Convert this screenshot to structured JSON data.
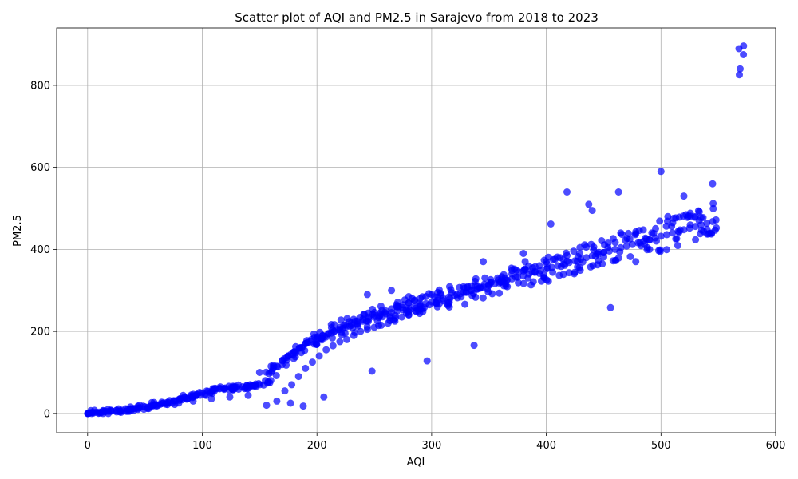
{
  "chart_data": {
    "type": "scatter",
    "title": "Scatter plot of AQI and PM2.5 in Sarajevo from 2018 to 2023",
    "xlabel": "AQI",
    "ylabel": "PM2.5",
    "xlim": [
      -27,
      600
    ],
    "ylim": [
      -47,
      940
    ],
    "x_ticks": [
      0,
      100,
      200,
      300,
      400,
      500,
      600
    ],
    "y_ticks": [
      0,
      200,
      400,
      600,
      800
    ],
    "grid": true,
    "marker_color": "#0000ff",
    "marker_alpha": 0.7,
    "trend_points_note_free": true,
    "x": [
      0,
      5,
      10,
      15,
      20,
      25,
      30,
      35,
      40,
      45,
      50,
      55,
      60,
      65,
      70,
      75,
      80,
      85,
      90,
      95,
      100,
      105,
      110,
      115,
      120,
      125,
      130,
      135,
      140,
      145,
      150,
      155,
      160,
      165,
      170,
      175,
      180,
      185,
      190,
      195,
      200,
      205,
      210,
      215,
      220,
      225,
      230,
      235,
      240,
      245,
      250,
      255,
      260,
      265,
      270,
      275,
      280,
      285,
      290,
      295,
      300,
      305,
      310,
      315,
      320,
      325,
      330,
      335,
      340,
      345,
      350,
      355,
      360,
      365,
      370,
      375,
      380,
      385,
      390,
      395,
      400,
      405,
      410,
      415,
      420,
      425,
      430,
      435,
      440,
      445,
      450,
      455,
      460,
      465,
      470,
      475,
      480,
      485,
      490,
      495,
      500,
      505,
      510,
      515,
      520,
      525,
      530,
      535,
      540,
      545,
      548,
      572,
      12,
      28,
      44,
      60,
      76,
      92,
      108,
      124,
      140,
      156,
      165,
      172,
      178,
      184,
      190,
      196,
      202,
      208,
      214,
      220,
      226,
      232,
      238,
      244,
      250,
      256,
      262,
      268,
      274,
      280,
      286,
      292,
      298,
      304,
      310,
      316,
      322,
      328,
      334,
      340,
      346,
      352,
      358,
      364,
      370,
      376,
      382,
      388,
      394,
      400,
      406,
      412,
      418,
      150,
      160,
      170,
      175,
      180,
      185,
      190,
      195,
      200,
      205,
      210,
      215,
      220,
      225,
      230,
      235,
      240,
      245,
      250,
      255,
      260,
      265,
      270,
      275,
      280,
      285,
      290,
      295,
      300,
      456,
      337,
      296,
      248,
      206,
      188,
      177,
      265,
      280,
      244,
      305,
      345,
      380,
      404,
      478,
      440,
      418,
      500,
      530,
      506,
      520,
      545,
      437,
      463
    ],
    "y": [
      0,
      1,
      3,
      4,
      5,
      7,
      8,
      10,
      12,
      14,
      16,
      18,
      21,
      24,
      27,
      31,
      35,
      38,
      42,
      46,
      50,
      54,
      58,
      60,
      62,
      63,
      64,
      65,
      66,
      67,
      70,
      80,
      100,
      115,
      128,
      140,
      150,
      160,
      170,
      180,
      185,
      190,
      195,
      200,
      205,
      210,
      215,
      220,
      225,
      230,
      235,
      240,
      243,
      246,
      250,
      253,
      256,
      260,
      264,
      268,
      272,
      276,
      280,
      284,
      288,
      292,
      296,
      300,
      304,
      308,
      312,
      316,
      320,
      324,
      328,
      332,
      336,
      340,
      344,
      348,
      352,
      356,
      360,
      364,
      368,
      372,
      376,
      380,
      384,
      388,
      392,
      396,
      400,
      404,
      408,
      412,
      416,
      420,
      424,
      428,
      432,
      436,
      440,
      444,
      448,
      452,
      456,
      460,
      464,
      468,
      472,
      896,
      2,
      6,
      10,
      18,
      22,
      30,
      36,
      40,
      44,
      20,
      30,
      55,
      70,
      90,
      110,
      125,
      140,
      155,
      165,
      175,
      180,
      190,
      200,
      205,
      210,
      215,
      220,
      225,
      235,
      240,
      250,
      255,
      265,
      270,
      275,
      280,
      290,
      295,
      300,
      310,
      315,
      320,
      325,
      330,
      340,
      345,
      350,
      355,
      360,
      370,
      375,
      380,
      385,
      100,
      115,
      130,
      140,
      150,
      160,
      170,
      175,
      180,
      190,
      195,
      200,
      210,
      215,
      220,
      225,
      230,
      235,
      240,
      245,
      250,
      255,
      260,
      265,
      270,
      275,
      280,
      285,
      290,
      258,
      166,
      128,
      103,
      40,
      18,
      25,
      300,
      285,
      290,
      260,
      370,
      390,
      462,
      370,
      495,
      540,
      590,
      480,
      480,
      530,
      560,
      510,
      540
    ]
  }
}
